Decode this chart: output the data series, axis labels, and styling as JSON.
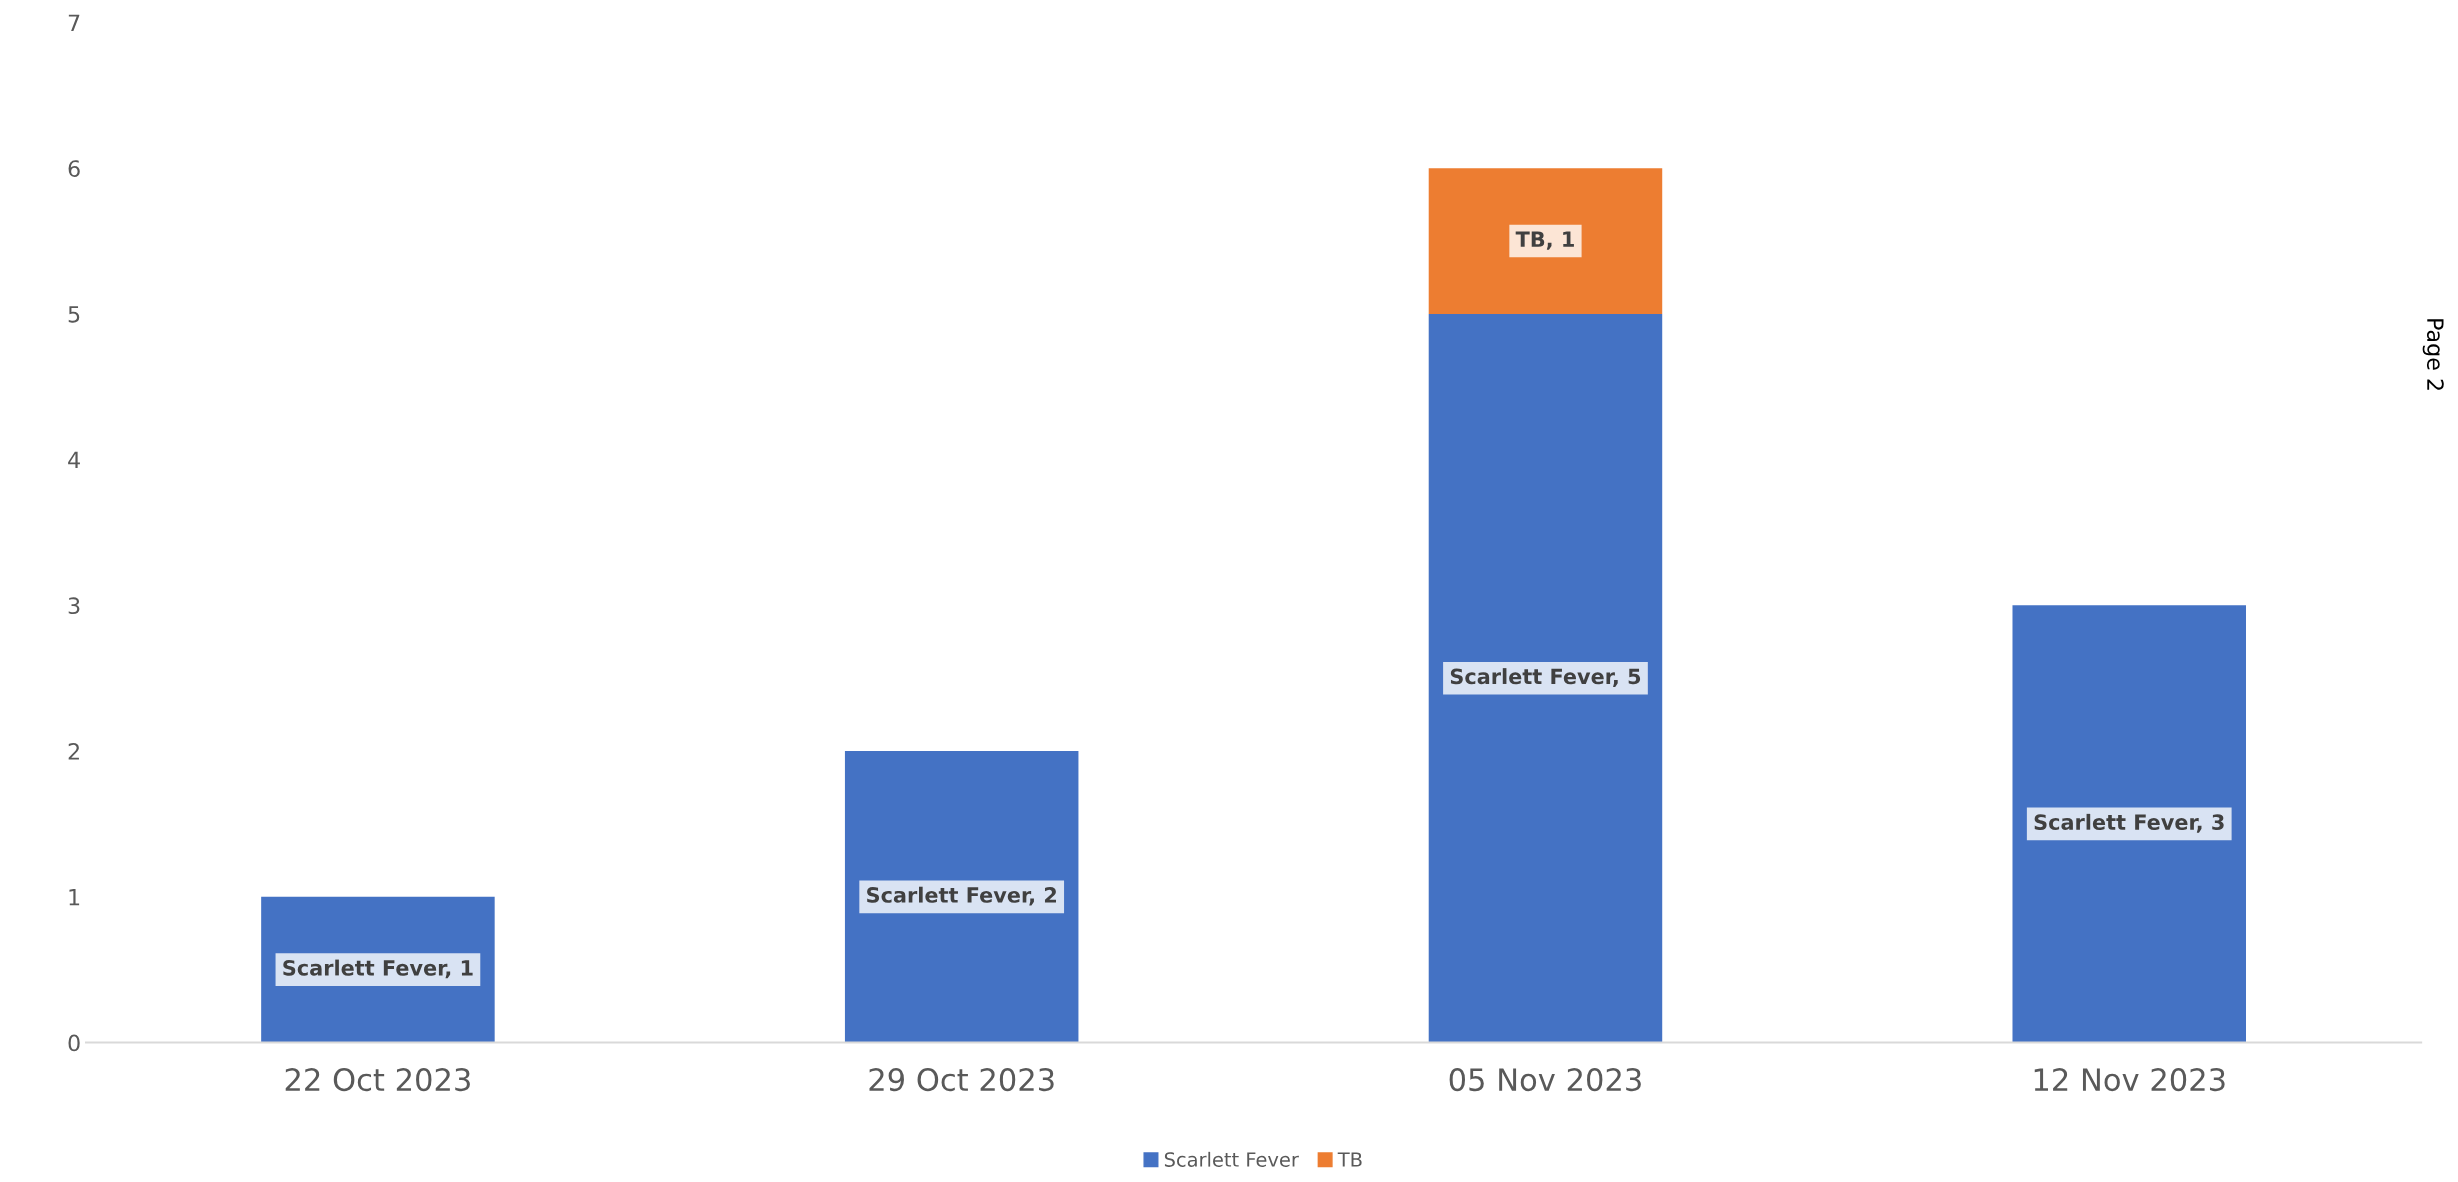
{
  "chart_data": {
    "type": "bar",
    "stacked": true,
    "categories": [
      "22 Oct 2023",
      "29 Oct 2023",
      "05 Nov 2023",
      "12 Nov 2023"
    ],
    "series": [
      {
        "name": "Scarlett Fever",
        "color": "#4472c4",
        "values": [
          1,
          2,
          5,
          3
        ],
        "value_labels": [
          "Scarlett Fever, 1",
          "Scarlett Fever, 2",
          "Scarlett Fever, 5",
          "Scarlett Fever, 3"
        ]
      },
      {
        "name": "TB",
        "color": "#ed7d31",
        "values": [
          null,
          null,
          1,
          null
        ],
        "value_labels": [
          null,
          null,
          "TB, 1",
          null
        ]
      }
    ],
    "ylim": [
      0,
      7
    ],
    "yticks": [
      0,
      1,
      2,
      3,
      4,
      5,
      6,
      7
    ],
    "grid": false,
    "legend": "bottom",
    "annotations": [
      "Page 2"
    ]
  }
}
